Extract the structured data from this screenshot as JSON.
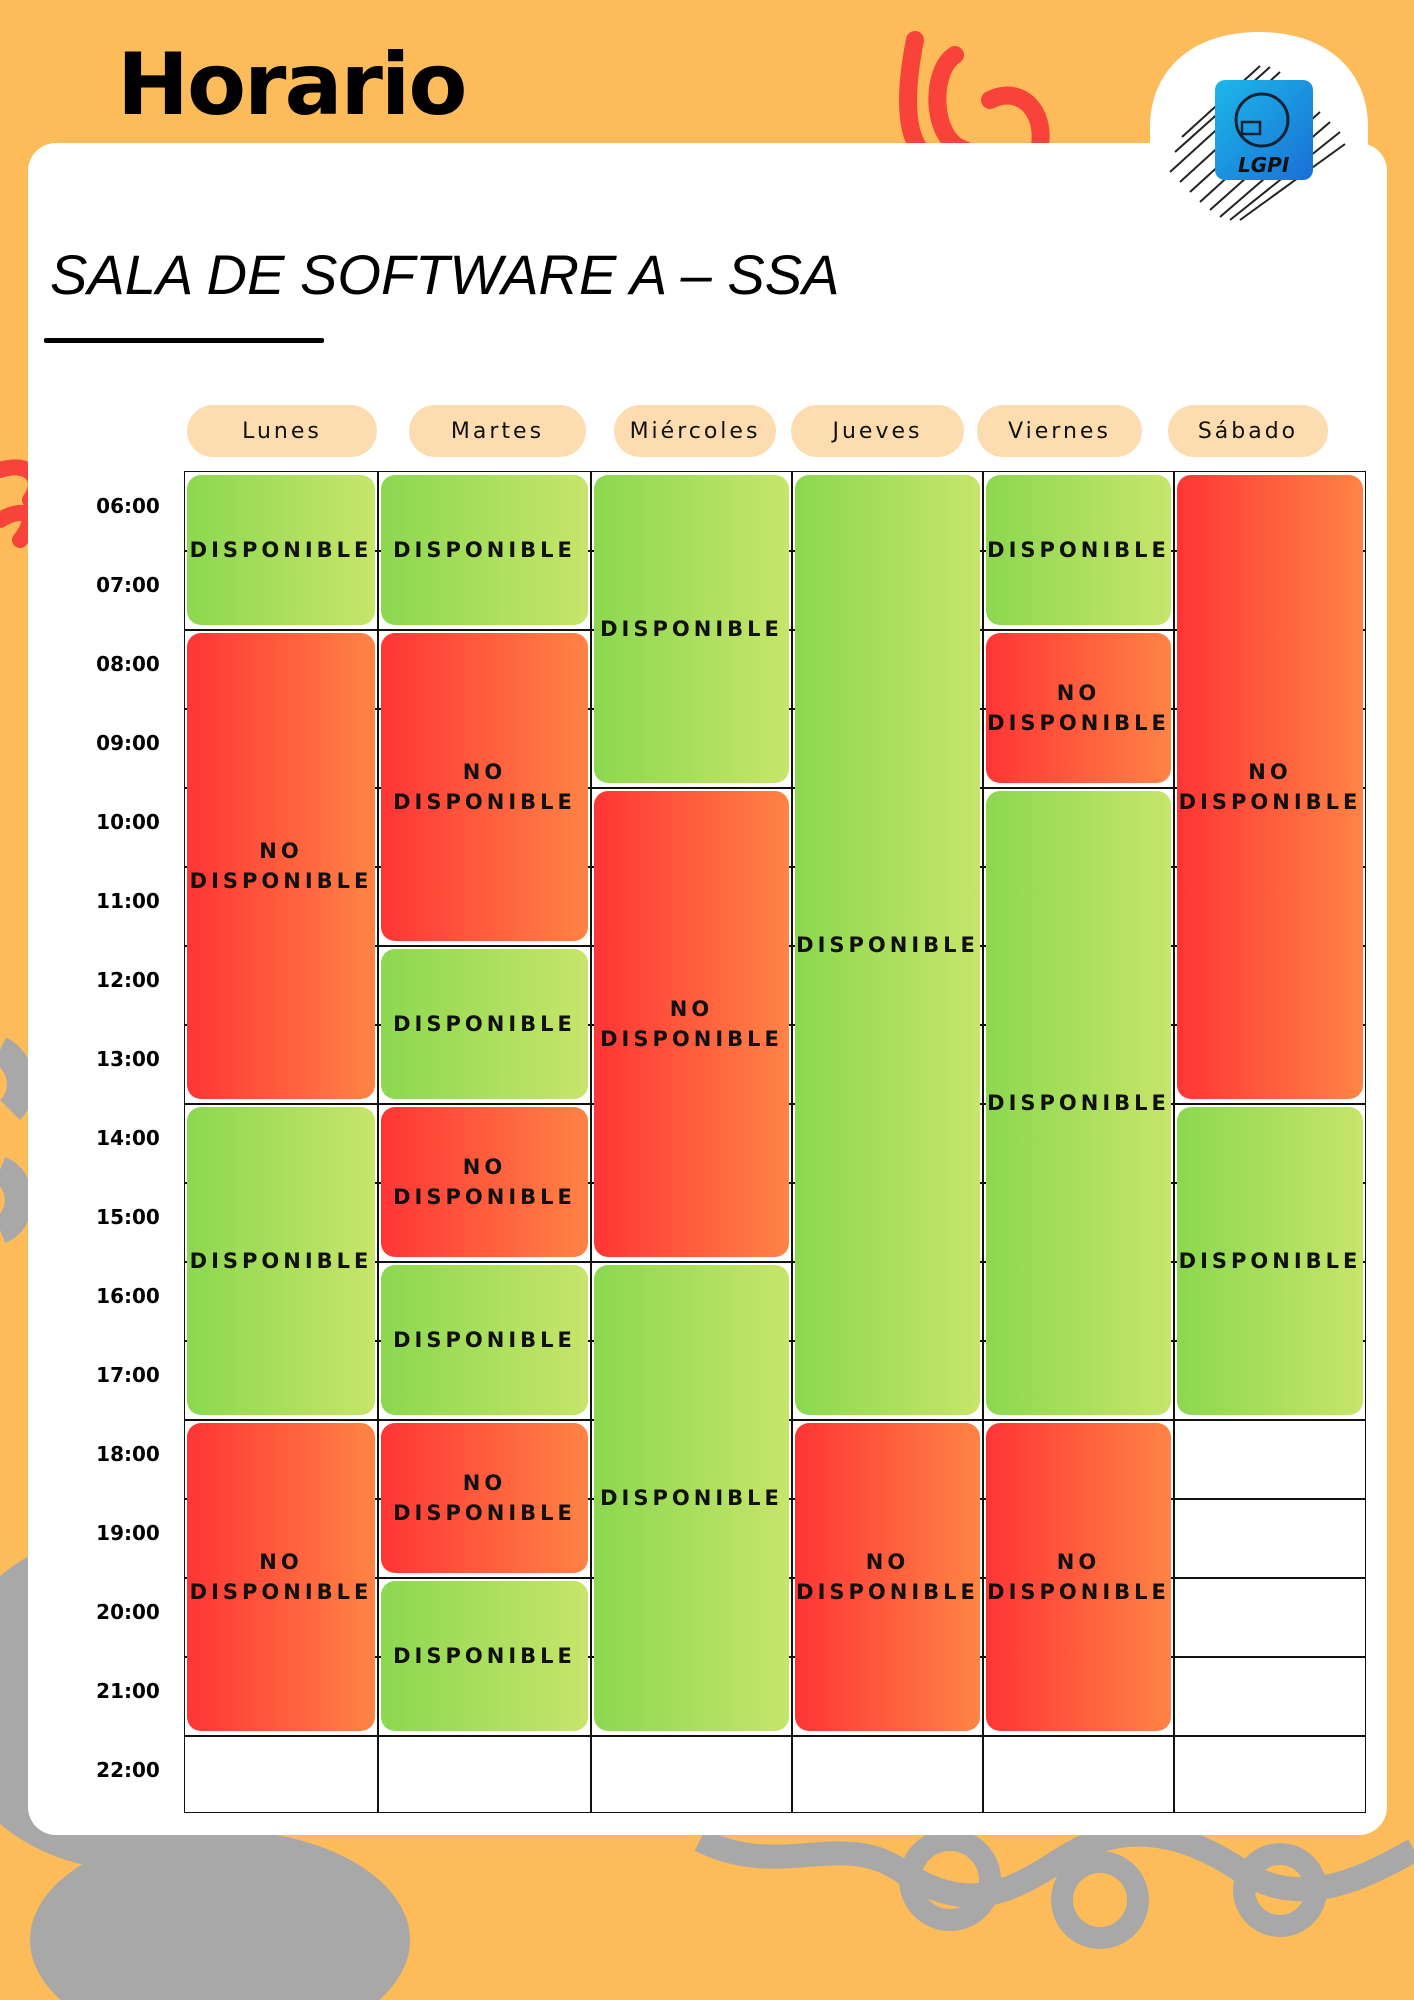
{
  "header": {
    "title": "Horario",
    "logo_text": "LGPI"
  },
  "room": {
    "name": "SALA DE SOFTWARE A – SSA"
  },
  "days": [
    "Lunes",
    "Martes",
    "Miércoles",
    "Jueves",
    "Viernes",
    "Sábado"
  ],
  "times": [
    "06:00",
    "07:00",
    "08:00",
    "09:00",
    "10:00",
    "11:00",
    "12:00",
    "13:00",
    "14:00",
    "15:00",
    "16:00",
    "17:00",
    "18:00",
    "19:00",
    "20:00",
    "21:00",
    "22:00"
  ],
  "status_labels": {
    "available": "DISPONIBLE",
    "unavailable": "NO DISPONIBLE"
  },
  "colors": {
    "background": "#FDBB5A",
    "available": "#8CD850",
    "unavailable": "#FF3535",
    "day_pill": "#FDDDB0"
  },
  "schedule": [
    {
      "day": "Lunes",
      "blocks": [
        {
          "start": "06:00",
          "end": "08:00",
          "status": "DISPONIBLE"
        },
        {
          "start": "08:00",
          "end": "14:00",
          "status": "NO DISPONIBLE"
        },
        {
          "start": "14:00",
          "end": "18:00",
          "status": "DISPONIBLE"
        },
        {
          "start": "18:00",
          "end": "22:00",
          "status": "NO DISPONIBLE"
        }
      ]
    },
    {
      "day": "Martes",
      "blocks": [
        {
          "start": "06:00",
          "end": "08:00",
          "status": "DISPONIBLE"
        },
        {
          "start": "08:00",
          "end": "12:00",
          "status": "NO DISPONIBLE"
        },
        {
          "start": "12:00",
          "end": "14:00",
          "status": "DISPONIBLE"
        },
        {
          "start": "14:00",
          "end": "16:00",
          "status": "NO DISPONIBLE"
        },
        {
          "start": "16:00",
          "end": "18:00",
          "status": "DISPONIBLE"
        },
        {
          "start": "18:00",
          "end": "20:00",
          "status": "NO DISPONIBLE"
        },
        {
          "start": "20:00",
          "end": "22:00",
          "status": "DISPONIBLE"
        }
      ]
    },
    {
      "day": "Miércoles",
      "blocks": [
        {
          "start": "06:00",
          "end": "10:00",
          "status": "DISPONIBLE"
        },
        {
          "start": "10:00",
          "end": "16:00",
          "status": "NO DISPONIBLE"
        },
        {
          "start": "16:00",
          "end": "22:00",
          "status": "DISPONIBLE"
        }
      ]
    },
    {
      "day": "Jueves",
      "blocks": [
        {
          "start": "06:00",
          "end": "18:00",
          "status": "DISPONIBLE"
        },
        {
          "start": "18:00",
          "end": "22:00",
          "status": "NO DISPONIBLE"
        }
      ]
    },
    {
      "day": "Viernes",
      "blocks": [
        {
          "start": "06:00",
          "end": "08:00",
          "status": "DISPONIBLE"
        },
        {
          "start": "08:00",
          "end": "10:00",
          "status": "NO DISPONIBLE"
        },
        {
          "start": "10:00",
          "end": "18:00",
          "status": "DISPONIBLE"
        },
        {
          "start": "18:00",
          "end": "22:00",
          "status": "NO DISPONIBLE"
        }
      ]
    },
    {
      "day": "Sábado",
      "blocks": [
        {
          "start": "06:00",
          "end": "14:00",
          "status": "NO DISPONIBLE"
        },
        {
          "start": "14:00",
          "end": "18:00",
          "status": "DISPONIBLE"
        }
      ]
    }
  ]
}
